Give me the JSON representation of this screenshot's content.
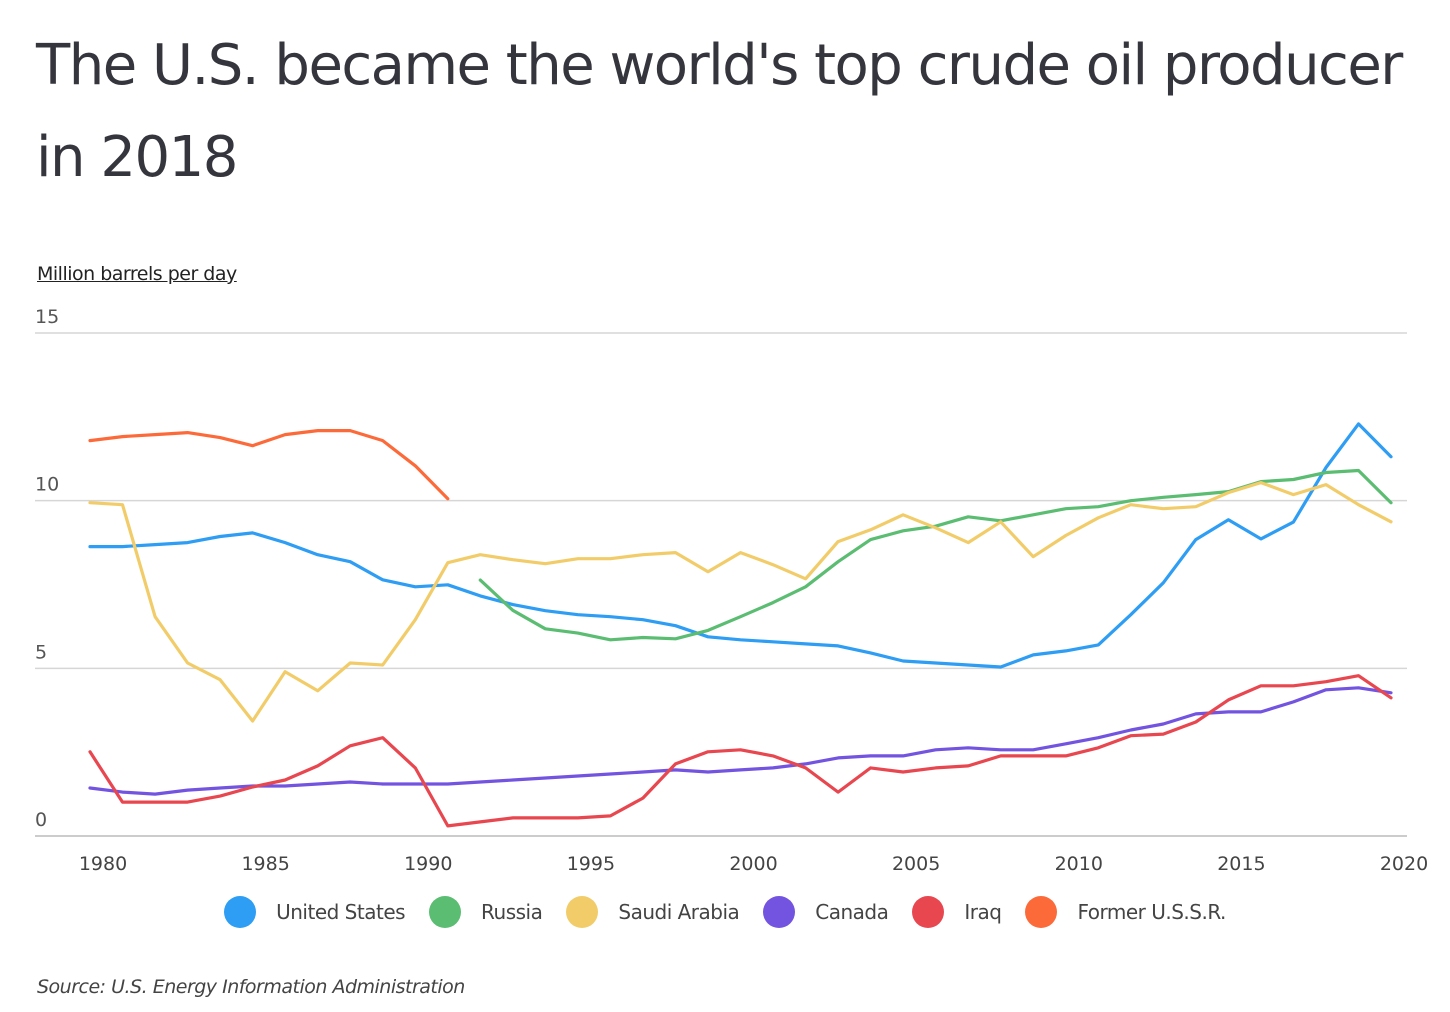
{
  "chart_data": {
    "type": "line",
    "title": "The U.S. became the world's top crude oil producer in 2018",
    "ylabel": "Million barrels per day",
    "xlabel": "",
    "source": "Source:  U.S. Energy Information Administration",
    "xlim": [
      1980,
      2020
    ],
    "ylim": [
      0,
      15
    ],
    "x_ticks": [
      1980,
      1985,
      1990,
      1995,
      2000,
      2005,
      2010,
      2015,
      2020
    ],
    "y_ticks": [
      0,
      5,
      10,
      15
    ],
    "grid": "horizontal",
    "legend_placement": "bottom",
    "series": [
      {
        "name": "United States",
        "color": "#2e9df4",
        "start_year": 1980,
        "values": [
          8.63,
          8.63,
          8.69,
          8.75,
          8.93,
          9.04,
          8.75,
          8.39,
          8.18,
          7.64,
          7.43,
          7.49,
          7.16,
          6.9,
          6.72,
          6.6,
          6.54,
          6.45,
          6.27,
          5.94,
          5.85,
          5.79,
          5.73,
          5.67,
          5.46,
          5.22,
          5.16,
          5.1,
          5.04,
          5.4,
          5.52,
          5.7,
          6.6,
          7.55,
          8.84,
          9.43,
          8.86,
          9.36,
          10.99,
          12.29,
          11.31
        ]
      },
      {
        "name": "Russia",
        "color": "#5bbd72",
        "start_year": 1992,
        "values": [
          7.63,
          6.73,
          6.18,
          6.05,
          5.85,
          5.92,
          5.88,
          6.13,
          6.54,
          6.96,
          7.43,
          8.18,
          8.84,
          9.1,
          9.24,
          9.52,
          9.4,
          9.58,
          9.76,
          9.82,
          10.0,
          10.1,
          10.18,
          10.27,
          10.57,
          10.63,
          10.84,
          10.9,
          9.94
        ]
      },
      {
        "name": "Saudi Arabia",
        "color": "#f1cc69",
        "start_year": 1980,
        "values": [
          9.94,
          9.88,
          6.54,
          5.16,
          4.66,
          3.43,
          4.9,
          4.33,
          5.16,
          5.1,
          6.45,
          8.15,
          8.39,
          8.24,
          8.12,
          8.27,
          8.27,
          8.39,
          8.45,
          7.88,
          8.45,
          8.09,
          7.67,
          8.78,
          9.13,
          9.58,
          9.19,
          8.75,
          9.37,
          8.33,
          8.96,
          9.49,
          9.88,
          9.76,
          9.82,
          10.24,
          10.54,
          10.18,
          10.48,
          9.88,
          9.37
        ]
      },
      {
        "name": "Canada",
        "color": "#7354e0",
        "start_year": 1980,
        "values": [
          1.43,
          1.31,
          1.25,
          1.37,
          1.43,
          1.49,
          1.49,
          1.55,
          1.61,
          1.55,
          1.55,
          1.55,
          1.61,
          1.67,
          1.73,
          1.79,
          1.85,
          1.91,
          1.97,
          1.91,
          1.97,
          2.03,
          2.15,
          2.33,
          2.39,
          2.39,
          2.57,
          2.63,
          2.57,
          2.57,
          2.75,
          2.93,
          3.16,
          3.34,
          3.64,
          3.7,
          3.7,
          4.0,
          4.36,
          4.42,
          4.27
        ]
      },
      {
        "name": "Iraq",
        "color": "#e8474f",
        "start_year": 1980,
        "values": [
          2.51,
          1.01,
          1.01,
          1.01,
          1.19,
          1.46,
          1.67,
          2.09,
          2.69,
          2.93,
          2.03,
          0.3,
          0.42,
          0.54,
          0.54,
          0.54,
          0.6,
          1.13,
          2.15,
          2.51,
          2.57,
          2.39,
          2.03,
          1.31,
          2.03,
          1.91,
          2.03,
          2.09,
          2.39,
          2.39,
          2.39,
          2.63,
          2.99,
          3.04,
          3.4,
          4.06,
          4.48,
          4.48,
          4.6,
          4.78,
          4.12
        ]
      },
      {
        "name": "Former U.S.S.R.",
        "color": "#fd6a3a",
        "start_year": 1980,
        "values": [
          11.79,
          11.91,
          11.97,
          12.03,
          11.88,
          11.64,
          11.97,
          12.09,
          12.09,
          11.79,
          11.04,
          10.06
        ]
      }
    ]
  }
}
